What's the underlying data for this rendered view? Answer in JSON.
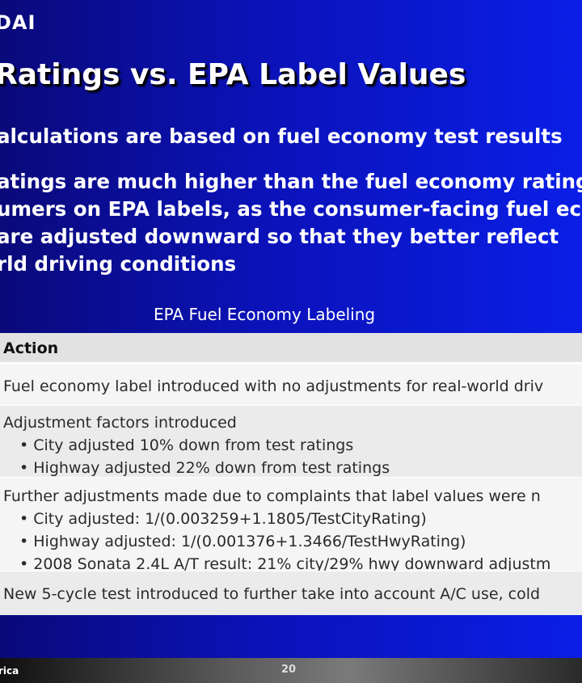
{
  "header": {
    "brand": "DAI",
    "title": "Ratings vs. EPA Label Values"
  },
  "bullets": [
    "alculations are based on fuel economy test results",
    "atings are much higher than the fuel economy ratings",
    "umers on EPA labels, as the consumer-facing fuel eco",
    "are adjusted downward so that they better reflect",
    "rld driving conditions"
  ],
  "table": {
    "caption": "EPA Fuel Economy Labeling",
    "header": "Action",
    "rows": [
      {
        "main": "Fuel economy label introduced with no adjustments for real-world driv",
        "subs": []
      },
      {
        "main": "Adjustment factors introduced",
        "subs": [
          "• City adjusted 10% down from test ratings",
          "• Highway adjusted 22% down from test ratings"
        ]
      },
      {
        "main": "Further adjustments made due to complaints that label values were n",
        "subs": [
          "• City adjusted: 1/(0.003259+1.1805/TestCityRating)",
          "• Highway adjusted: 1/(0.001376+1.3466/TestHwyRating)",
          "• 2008 Sonata 2.4L A/T result: 21% city/29% hwy downward adjustm"
        ]
      },
      {
        "main": "New 5-cycle test introduced to further take into account A/C use, cold",
        "subs": []
      }
    ]
  },
  "footer": {
    "left": "rica",
    "page": "20"
  }
}
